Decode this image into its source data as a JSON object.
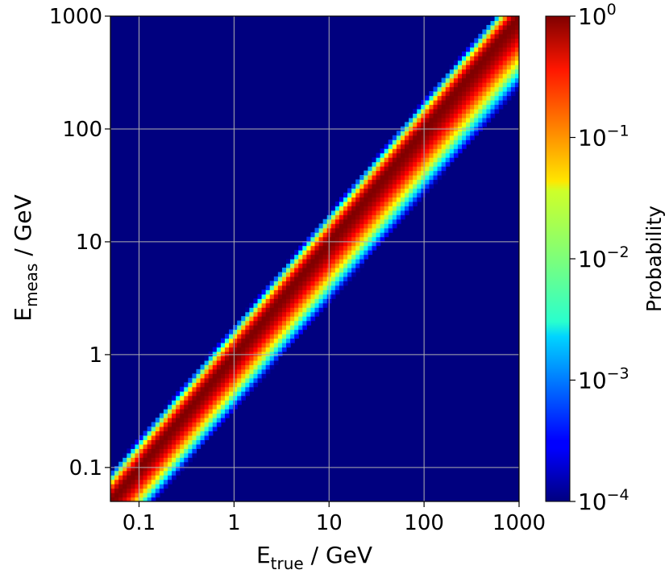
{
  "chart_data": {
    "type": "heatmap",
    "title": "",
    "xlabel": {
      "main": "E",
      "sub": "true",
      "rest": " / GeV"
    },
    "ylabel": {
      "main": "E",
      "sub": "meas",
      "rest": " / GeV"
    },
    "xscale": "log",
    "yscale": "log",
    "xlim": [
      0.05,
      1000
    ],
    "ylim": [
      0.05,
      1000
    ],
    "x_ticks": [
      {
        "value": 0.1,
        "label": "0.1"
      },
      {
        "value": 1,
        "label": "1"
      },
      {
        "value": 10,
        "label": "10"
      },
      {
        "value": 100,
        "label": "100"
      },
      {
        "value": 1000,
        "label": "1000"
      }
    ],
    "y_ticks": [
      {
        "value": 0.1,
        "label": "0.1"
      },
      {
        "value": 1,
        "label": "1"
      },
      {
        "value": 10,
        "label": "10"
      },
      {
        "value": 100,
        "label": "100"
      },
      {
        "value": 1000,
        "label": "1000"
      }
    ],
    "grid": true,
    "colormap": "jet",
    "colorbar": {
      "label": "Probability",
      "scale": "log",
      "range": [
        0.0001,
        1
      ],
      "ticks": [
        {
          "value": 1,
          "base": "10",
          "exp": "0"
        },
        {
          "value": 0.1,
          "base": "10",
          "exp": "−1"
        },
        {
          "value": 0.01,
          "base": "10",
          "exp": "−2"
        },
        {
          "value": 0.001,
          "base": "10",
          "exp": "−3"
        },
        {
          "value": 0.0001,
          "base": "10",
          "exp": "−4"
        }
      ]
    },
    "response_model": {
      "description": "Probability peaks at E_meas = E_true, spreading toward lower measured energies",
      "peak_ratio_Emeas_over_Etrue": 1.0,
      "tail_below_diagonal_decades": 0.55,
      "tail_above_diagonal_decades": 0.25
    },
    "colors": {
      "background_min": "#00007f",
      "peak": "#7f0000",
      "grid": "#b0b0b0"
    }
  }
}
